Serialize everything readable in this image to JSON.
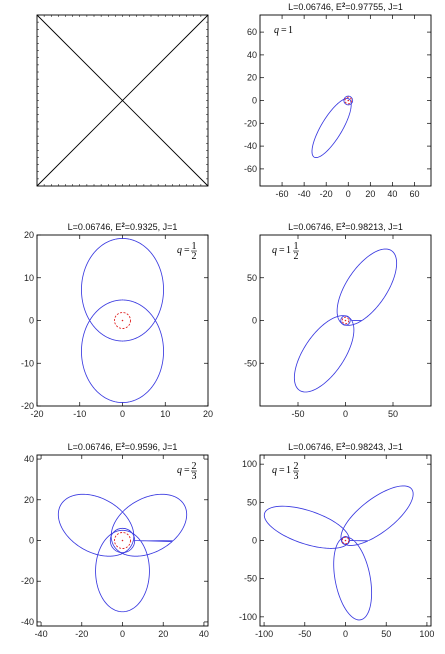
{
  "chart_data": [
    {
      "type": "placeholder",
      "title": "",
      "note_visual": "empty panel crossed by two diagonals"
    },
    {
      "type": "orbit",
      "title_parts": [
        "L=0.06746, E",
        "2",
        "=0.97755, J=1"
      ],
      "q": {
        "whole": "1",
        "num": "",
        "den": ""
      },
      "xlim": [
        -80,
        75
      ],
      "ylim": [
        -75,
        75
      ],
      "xticks": [
        -60,
        -40,
        -20,
        0,
        20,
        40,
        60
      ],
      "yticks": [
        -60,
        -40,
        -20,
        0,
        20,
        40,
        60
      ],
      "xaxis": "bottom",
      "yaxis": "left",
      "orbit": {
        "a": 30,
        "e": 0.95,
        "petals": 1,
        "omega_deg": 58,
        "cx": 0,
        "cy": 0
      },
      "inner_circle": {
        "r": 4,
        "style": "solid"
      },
      "horizon_circle": {
        "r": 2,
        "style": "dashed"
      }
    },
    {
      "type": "orbit",
      "title_parts": [
        "L=0.06746, E",
        "2",
        "=0.9325, J=1"
      ],
      "q": {
        "whole": "",
        "num": "1",
        "den": "2"
      },
      "xlim": [
        -20,
        20
      ],
      "ylim": [
        -20,
        20
      ],
      "xticks": [
        -20,
        -10,
        0,
        10,
        20
      ],
      "yticks": [
        -20,
        -10,
        0,
        10,
        20
      ],
      "orbit": {
        "a": 12,
        "e": 0.6,
        "petals": 2,
        "omega_deg": 90
      },
      "inner_circle": {
        "r": 0,
        "style": "none"
      },
      "horizon_circle": {
        "r": 2,
        "style": "dashed"
      }
    },
    {
      "type": "orbit",
      "title_parts": [
        "L=0.06746, E",
        "2",
        "=0.98213, J=1"
      ],
      "q": {
        "whole": "1",
        "num": "1",
        "den": "2"
      },
      "xlim": [
        -90,
        90
      ],
      "ylim": [
        -100,
        100
      ],
      "xticks": [
        -50,
        0,
        50
      ],
      "yticks": [
        -50,
        0,
        50
      ],
      "orbit": {
        "a": 50,
        "e": 0.9,
        "petals": 2,
        "omega_deg": 60
      },
      "inner_circle": {
        "r": 5,
        "style": "solid"
      },
      "horizon_circle": {
        "r": 2,
        "style": "dashed"
      }
    },
    {
      "type": "orbit",
      "title_parts": [
        "L=0.06746, E",
        "2",
        "=0.9596, J=1"
      ],
      "q": {
        "whole": "",
        "num": "2",
        "den": "3"
      },
      "xlim": [
        -42,
        42
      ],
      "ylim": [
        -42,
        42
      ],
      "xticks": [
        -40,
        -20,
        0,
        20,
        40
      ],
      "yticks": [
        -40,
        -20,
        0,
        20,
        40
      ],
      "orbit": {
        "a": 20,
        "e": 0.75,
        "petals": 3,
        "omega_deg": 90
      },
      "inner_circle": {
        "r": 6,
        "style": "solid"
      },
      "horizon_circle": {
        "r": 2,
        "style": "dashed"
      }
    },
    {
      "type": "orbit",
      "title_parts": [
        "L=0.06746, E",
        "2",
        "=0.98243, J=1"
      ],
      "q": {
        "whole": "1",
        "num": "2",
        "den": "3"
      },
      "xlim": [
        -105,
        105
      ],
      "ylim": [
        -112,
        112
      ],
      "xticks": [
        -100,
        -50,
        0,
        50,
        100
      ],
      "yticks": [
        -100,
        -50,
        0,
        50,
        100
      ],
      "orbit": {
        "a": 55,
        "e": 0.92,
        "petals": 3,
        "omega_deg": 100
      },
      "inner_circle": {
        "r": 5,
        "style": "solid"
      },
      "horizon_circle": {
        "r": 2,
        "style": "dashed"
      }
    }
  ],
  "colors": {
    "orbit": "#3a3ae0",
    "horizon": "#e02020",
    "frame": "#000000"
  }
}
